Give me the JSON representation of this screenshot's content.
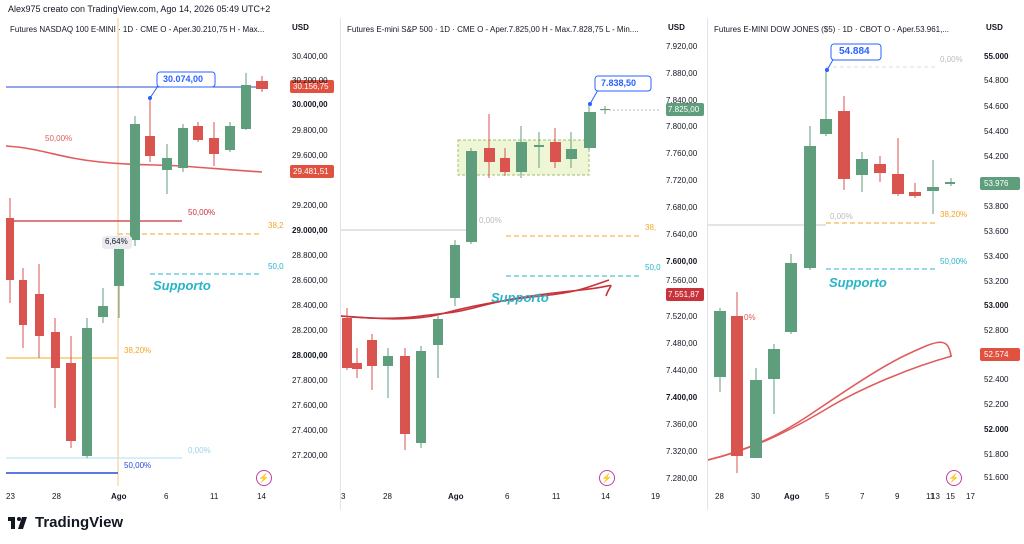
{
  "header": {
    "author_line": "Alex975 creato con TradingView.com, Ago 14, 2026 05:49 UTC+2"
  },
  "footer": {
    "logo_text": "TradingView"
  },
  "charts": [
    {
      "title": "Futures NASDAQ 100 E-MINI · 1D · CME  O - Aper.30.210,75  H - Max...",
      "currency": "USD",
      "yticks": [
        "30.400,00",
        "30.200,00",
        "30.000,00",
        "29.800,00",
        "29.600,00",
        "29.400,00",
        "29.200,00",
        "29.000,00",
        "28.800,00",
        "28.600,00",
        "28.400,00",
        "28.200,00",
        "28.000,00",
        "27.800,00",
        "27.600,00",
        "27.400,00",
        "27.200,00"
      ],
      "xticks": [
        "23",
        "28",
        "Ago",
        "6",
        "11",
        "14"
      ],
      "callout": "30.074,00",
      "price_tags": [
        {
          "text": "30.156,75",
          "color": "#e0523f"
        },
        {
          "text": "29.481,51",
          "color": "#e0523f"
        }
      ],
      "fib_labels": [
        "50,00%",
        "50,00%",
        "38,2",
        "50,0",
        "38,20%",
        "0,00%",
        "50,00%"
      ],
      "pct_label": "6,64%",
      "support_label": "Supporto"
    },
    {
      "title": "Futures E-mini S&P 500 · 1D · CME  O - Aper.7.825,00  H - Max.7.828,75  L - Min....",
      "currency": "USD",
      "yticks": [
        "7.920,00",
        "7.880,00",
        "7.840,00",
        "7.800,00",
        "7.760,00",
        "7.720,00",
        "7.680,00",
        "7.640,00",
        "7.600,00",
        "7.560,00",
        "7.520,00",
        "7.480,00",
        "7.440,00",
        "7.400,00",
        "7.360,00",
        "7.320,00",
        "7.280,00"
      ],
      "xticks": [
        "3",
        "28",
        "Ago",
        "6",
        "11",
        "14",
        "19"
      ],
      "callout": "7.838,50",
      "price_tags": [
        {
          "text": "7.825,00",
          "color": "#5f9e7d"
        },
        {
          "text": "7.551,87",
          "color": "#c8323a"
        }
      ],
      "fib_labels": [
        "0,00%",
        "38,",
        "50,0"
      ],
      "support_label": "Supporto"
    },
    {
      "title": "Futures E-MINI DOW JONES ($5) · 1D · CBOT  O - Aper.53.961,...",
      "currency": "USD",
      "yticks": [
        "55.000",
        "54.800",
        "54.600",
        "54.400",
        "54.200",
        "54.000",
        "53.800",
        "53.600",
        "53.400",
        "53.200",
        "53.000",
        "52.800",
        "52.600",
        "52.400",
        "52.200",
        "52.000",
        "51.800",
        "51.600"
      ],
      "xticks": [
        "28",
        "30",
        "Ago",
        "5",
        "7",
        "9",
        "11",
        "13",
        "15",
        "17"
      ],
      "callout": "54.884",
      "price_tags": [
        {
          "text": "53.976",
          "color": "#5f9e7d"
        },
        {
          "text": "52.574",
          "color": "#e0523f"
        }
      ],
      "fib_labels": [
        "0,00%",
        "0,00%",
        "38,20%",
        "50,00%",
        "0%"
      ],
      "support_label": "Supporto"
    }
  ],
  "colors": {
    "up": "#5f9e7d",
    "down": "#d9534f",
    "callout": "#2962ff",
    "support": "#26b5c9",
    "fib_orange": "#f5a623",
    "fib_blue": "#2a4bd7",
    "fib_red": "#c8323a",
    "ma": "#e05c5c"
  }
}
